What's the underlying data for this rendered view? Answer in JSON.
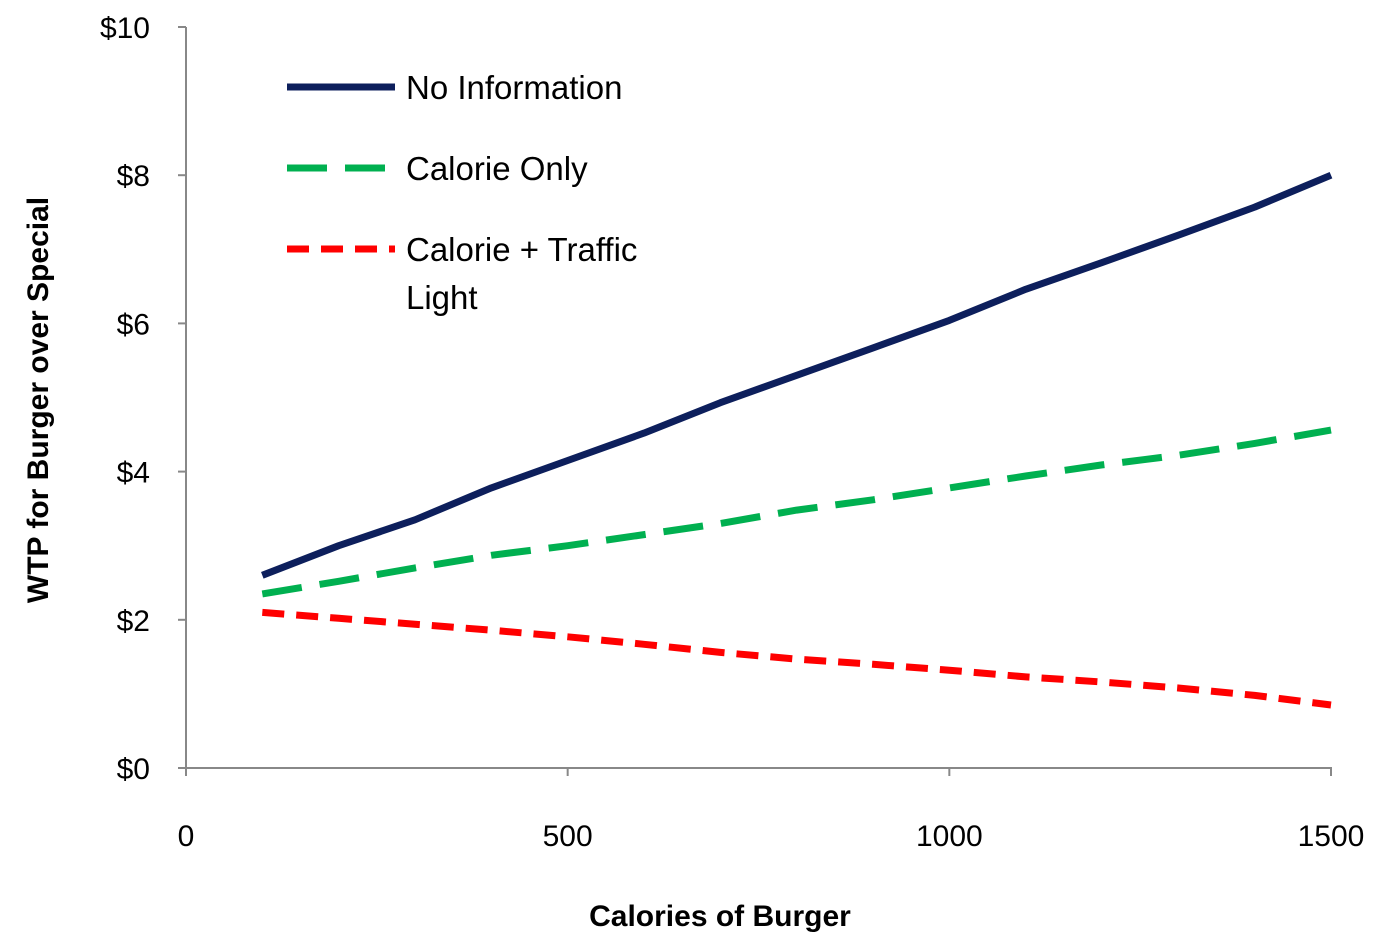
{
  "chart_data": {
    "type": "line",
    "xlabel": "Calories of Burger",
    "ylabel": "WTP for Burger over Special",
    "xlim": [
      0,
      1500
    ],
    "ylim": [
      0,
      10
    ],
    "x_ticks": [
      0,
      500,
      1000,
      1500
    ],
    "x_tick_labels": [
      "0",
      "500",
      "1000",
      "1500"
    ],
    "y_ticks": [
      0,
      2,
      4,
      6,
      8,
      10
    ],
    "y_tick_labels": [
      "$0",
      "$2",
      "$4",
      "$6",
      "$8",
      "$10"
    ],
    "grid": false,
    "legend_position": "top-left",
    "series": [
      {
        "name": "No Information",
        "color": "#0d1f5c",
        "style": "solid",
        "x": [
          100,
          200,
          300,
          400,
          500,
          600,
          700,
          800,
          900,
          1000,
          1100,
          1200,
          1300,
          1400,
          1500
        ],
        "y": [
          2.6,
          3.0,
          3.35,
          3.78,
          4.15,
          4.52,
          4.93,
          5.3,
          5.67,
          6.04,
          6.46,
          6.82,
          7.19,
          7.57,
          8.0
        ]
      },
      {
        "name": "Calorie Only",
        "color": "#00b050",
        "style": "long-dash",
        "x": [
          100,
          200,
          300,
          400,
          500,
          600,
          700,
          800,
          900,
          1000,
          1100,
          1200,
          1300,
          1400,
          1500
        ],
        "y": [
          2.35,
          2.52,
          2.7,
          2.87,
          3.0,
          3.15,
          3.3,
          3.48,
          3.62,
          3.78,
          3.94,
          4.09,
          4.22,
          4.38,
          4.56
        ]
      },
      {
        "name": "Calorie + Traffic Light",
        "legend_lines": [
          "Calorie + Traffic",
          "Light"
        ],
        "color": "#ff0000",
        "style": "short-dash",
        "x": [
          100,
          200,
          300,
          400,
          500,
          600,
          700,
          800,
          900,
          1000,
          1100,
          1200,
          1300,
          1400,
          1500
        ],
        "y": [
          2.1,
          2.02,
          1.94,
          1.86,
          1.77,
          1.67,
          1.56,
          1.47,
          1.4,
          1.32,
          1.23,
          1.16,
          1.08,
          0.98,
          0.85
        ]
      }
    ]
  }
}
